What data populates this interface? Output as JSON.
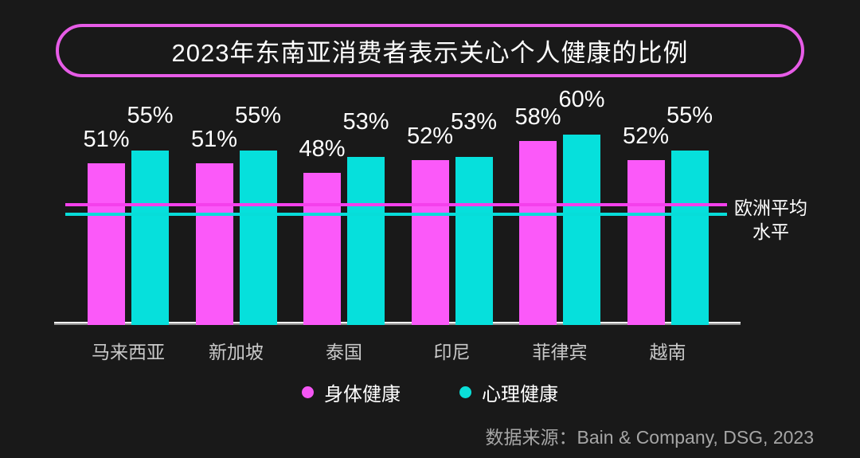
{
  "title": "2023年东南亚消费者表示关心个人健康的比例",
  "chart_data": {
    "type": "bar",
    "title": "2023年东南亚消费者表示关心个人健康的比例",
    "categories": [
      "马来西亚",
      "新加坡",
      "泰国",
      "印尼",
      "菲律宾",
      "越南"
    ],
    "series": [
      {
        "name": "身体健康",
        "color": "#fb59f9",
        "values": [
          51,
          51,
          48,
          52,
          58,
          52
        ]
      },
      {
        "name": "心理健康",
        "color": "#06e0dc",
        "values": [
          55,
          55,
          53,
          53,
          60,
          55
        ]
      }
    ],
    "unit": "%",
    "ylim": [
      0,
      63
    ],
    "grid": false,
    "legend_position": "bottom",
    "data_labels": true,
    "reference_lines": [
      {
        "label": "欧洲平均水平",
        "series": "身体健康",
        "value": 38,
        "color": "#f440ec"
      },
      {
        "label": "欧洲平均水平",
        "series": "心理健康",
        "value": 35,
        "color": "#07ddd9"
      }
    ]
  },
  "reference_label": {
    "line1": "欧洲平均",
    "line2": "水平"
  },
  "legend": {
    "items": [
      {
        "label": "身体健康",
        "color": "#f356f3"
      },
      {
        "label": "心理健康",
        "color": "#0adfd8"
      }
    ]
  },
  "source": "数据来源：Bain & Company, DSG, 2023",
  "colors": {
    "background": "#191919",
    "title_border": "#e75ce7",
    "axis": "#cfcfcf",
    "category_label": "#c9c9c9",
    "value_label": "#ffffff",
    "reference_label": "#ffffff",
    "source_text": "#a6a6a6"
  }
}
